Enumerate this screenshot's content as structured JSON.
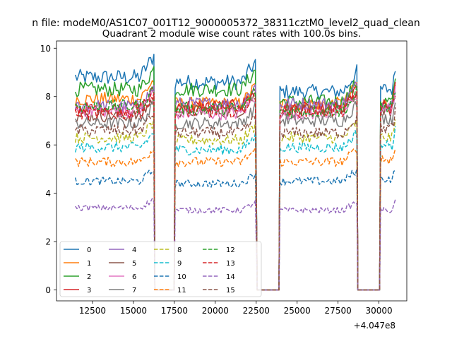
{
  "figure": {
    "suptitle": "n file: modeM0/AS1C07_001T12_9000005372_38311cztM0_level2_quad_clean",
    "title": "Quadrant 2 module wise count rates with 100.0s bins.",
    "offset_label": "+4.047e8"
  },
  "chart_data": {
    "type": "line",
    "title": "Quadrant 2 module wise count rates with 100.0s bins.",
    "xlabel": "",
    "ylabel": "",
    "x_offset": 404700000,
    "xlim": [
      10300,
      31700
    ],
    "ylim": [
      -0.45,
      10.3
    ],
    "xticks": [
      12500,
      15000,
      17500,
      20000,
      22500,
      25000,
      27500,
      30000
    ],
    "xtick_labels": [
      "12500",
      "15000",
      "17500",
      "20000",
      "22500",
      "25000",
      "27500",
      "30000"
    ],
    "yticks": [
      0,
      2,
      4,
      6,
      8,
      10
    ],
    "ytick_labels": [
      "0",
      "2",
      "4",
      "6",
      "8",
      "10"
    ],
    "grid": false,
    "legend": {
      "placement": "lower-left",
      "columns": 4
    },
    "segments_x": [
      [
        11450,
        16250
      ],
      [
        17550,
        22500
      ],
      [
        23950,
        28650
      ],
      [
        30100,
        31000
      ]
    ],
    "zero_gaps_x": [
      [
        16250,
        17550
      ],
      [
        22500,
        23950
      ],
      [
        28650,
        30100
      ]
    ],
    "series": [
      {
        "name": "0",
        "color": "#1f77b4",
        "dash": "solid",
        "levels": [
          8.8,
          8.6,
          8.2,
          8.3
        ]
      },
      {
        "name": "1",
        "color": "#ff7f0e",
        "dash": "solid",
        "levels": [
          7.9,
          7.7,
          7.7,
          7.7
        ]
      },
      {
        "name": "2",
        "color": "#2ca02c",
        "dash": "solid",
        "levels": [
          8.3,
          8.3,
          7.8,
          7.8
        ]
      },
      {
        "name": "3",
        "color": "#d62728",
        "dash": "solid",
        "levels": [
          7.5,
          7.6,
          7.5,
          7.6
        ]
      },
      {
        "name": "4",
        "color": "#9467bd",
        "dash": "solid",
        "levels": [
          7.6,
          7.7,
          7.7,
          7.7
        ]
      },
      {
        "name": "5",
        "color": "#8c564b",
        "dash": "solid",
        "levels": [
          7.2,
          7.4,
          7.4,
          7.4
        ]
      },
      {
        "name": "6",
        "color": "#e377c2",
        "dash": "solid",
        "levels": [
          7.4,
          7.3,
          7.3,
          7.5
        ]
      },
      {
        "name": "7",
        "color": "#7f7f7f",
        "dash": "solid",
        "levels": [
          6.9,
          6.9,
          7.0,
          7.1
        ]
      },
      {
        "name": "8",
        "color": "#bcbd22",
        "dash": "dashed",
        "levels": [
          6.3,
          6.2,
          6.3,
          6.3
        ]
      },
      {
        "name": "9",
        "color": "#17becf",
        "dash": "dashed",
        "levels": [
          5.9,
          5.8,
          5.9,
          6.0
        ]
      },
      {
        "name": "10",
        "color": "#1f77b4",
        "dash": "dashed",
        "levels": [
          4.5,
          4.4,
          4.5,
          4.6
        ]
      },
      {
        "name": "11",
        "color": "#ff7f0e",
        "dash": "dashed",
        "levels": [
          5.3,
          5.3,
          5.3,
          5.4
        ]
      },
      {
        "name": "12",
        "color": "#2ca02c",
        "dash": "dashed",
        "levels": [
          7.6,
          7.5,
          7.4,
          7.6
        ]
      },
      {
        "name": "13",
        "color": "#d62728",
        "dash": "dashed",
        "levels": [
          7.3,
          7.4,
          7.4,
          7.5
        ]
      },
      {
        "name": "14",
        "color": "#9467bd",
        "dash": "dashed",
        "levels": [
          3.4,
          3.3,
          3.3,
          3.3
        ]
      },
      {
        "name": "15",
        "color": "#8c564b",
        "dash": "dashed",
        "levels": [
          6.6,
          6.5,
          6.5,
          6.7
        ]
      }
    ]
  }
}
